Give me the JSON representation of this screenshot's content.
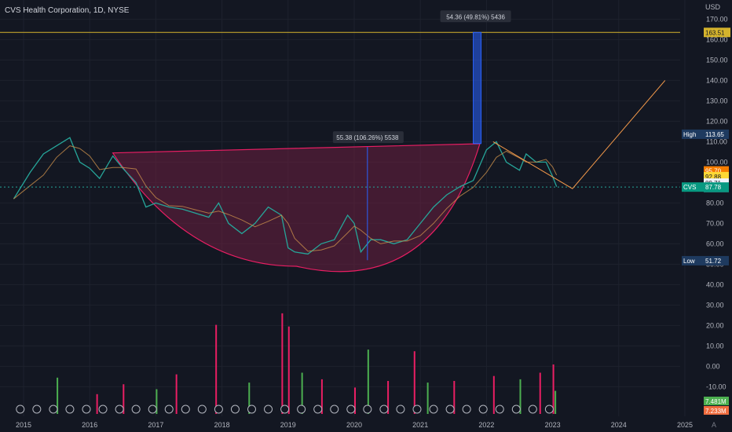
{
  "header": {
    "symbol_title": "CVS Health Corporation, 1D, NYSE",
    "currency": "USD"
  },
  "colors": {
    "background": "#131722",
    "up": "#26a69a",
    "down": "#ef5350",
    "vol_up": "#4caf50",
    "vol_down": "#e91e63",
    "cup_fill": "#6b1f3f",
    "cup_stroke": "#e91e63",
    "measure_blue": "#2962ff",
    "hline": "#d4b32c",
    "projection": "#f59a4a"
  },
  "annotations": {
    "measure1": "55.38 (106.26%) 5538",
    "measure2": "54.36 (49.81%) 5436"
  },
  "price_labels": {
    "hline": "163.51",
    "high_tag": "High",
    "high_value": "113.65",
    "low_tag": "Low",
    "low_value": "51.72",
    "symbol_tag": "CVS",
    "last": "87.78",
    "l1": "95.70",
    "l2": "92.88",
    "l3": "89.71",
    "l4": "87.56",
    "vol1": "7.481M",
    "vol2": "7.233M"
  },
  "footer": {
    "auto_label": "A"
  },
  "chart_data": {
    "type": "line",
    "title": "CVS Health Corporation, 1D, NYSE",
    "xlabel": "",
    "ylabel": "USD",
    "ylim": [
      -20,
      175
    ],
    "yticks": [
      "170.00",
      "160.00",
      "150.00",
      "140.00",
      "130.00",
      "120.00",
      "110.00",
      "100.00",
      "90.00",
      "80.00",
      "70.00",
      "60.00",
      "50.00",
      "40.00",
      "30.00",
      "20.00",
      "10.00",
      "0.00",
      "-10.00"
    ],
    "xticks": [
      "2015",
      "2016",
      "2017",
      "2018",
      "2019",
      "2020",
      "2021",
      "2022",
      "2023",
      "2024",
      "2025"
    ],
    "series": [
      {
        "values_x": [
          2014.85,
          2015.1,
          2015.3,
          2015.5,
          2015.7,
          2015.85,
          2016.0,
          2016.15,
          2016.35,
          2016.5,
          2016.7,
          2016.85,
          2017.0,
          2017.2,
          2017.4,
          2017.6,
          2017.8,
          2017.95,
          2018.1,
          2018.3,
          2018.5,
          2018.7,
          2018.9,
          2019.0,
          2019.1,
          2019.3,
          2019.5,
          2019.7,
          2019.9,
          2020.0,
          2020.1,
          2020.25,
          2020.4,
          2020.6,
          2020.8,
          2021.0,
          2021.2,
          2021.4,
          2021.6,
          2021.8,
          2022.0,
          2022.15,
          2022.3,
          2022.5,
          2022.6,
          2022.75,
          2022.9,
          2023.0,
          2023.06
        ],
        "values": [
          82,
          95,
          104,
          108,
          112,
          100,
          97,
          92,
          103,
          97,
          90,
          78,
          80,
          78,
          77,
          75,
          73,
          80,
          70,
          65,
          70,
          78,
          74,
          58,
          56,
          55,
          60,
          62,
          74,
          70,
          56,
          62,
          62,
          60,
          62,
          70,
          78,
          84,
          88,
          91,
          106,
          110,
          100,
          96,
          104,
          100,
          100,
          93,
          88
        ]
      }
    ],
    "high": 113.65,
    "low": 51.72,
    "last": 87.78,
    "horizontal_line": 163.51,
    "cup": {
      "rim": 104.5,
      "bottom": 49
    },
    "measure1": {
      "from": 52,
      "to": 107.4,
      "change": 55.38,
      "pct": 106.26
    },
    "measure2": {
      "from": 109.1,
      "to": 163.5,
      "change": 54.36,
      "pct": 49.81
    },
    "projection": [
      [
        2023.3,
        87
      ],
      [
        2024.7,
        140
      ]
    ],
    "volume": [
      [
        2015.5,
        2.2
      ],
      [
        2016.1,
        1.2
      ],
      [
        2016.5,
        1.8
      ],
      [
        2017.0,
        1.5
      ],
      [
        2017.3,
        2.4
      ],
      [
        2017.9,
        5.4
      ],
      [
        2018.4,
        1.9
      ],
      [
        2018.9,
        6.1
      ],
      [
        2019.0,
        5.3
      ],
      [
        2019.2,
        2.5
      ],
      [
        2019.5,
        2.1
      ],
      [
        2020.0,
        1.6
      ],
      [
        2020.2,
        3.9
      ],
      [
        2020.5,
        2.0
      ],
      [
        2020.9,
        3.8
      ],
      [
        2021.1,
        1.9
      ],
      [
        2021.5,
        2.0
      ],
      [
        2022.1,
        2.3
      ],
      [
        2022.5,
        2.1
      ],
      [
        2022.8,
        2.5
      ],
      [
        2023.0,
        3.0
      ],
      [
        2023.03,
        1.4
      ]
    ]
  }
}
